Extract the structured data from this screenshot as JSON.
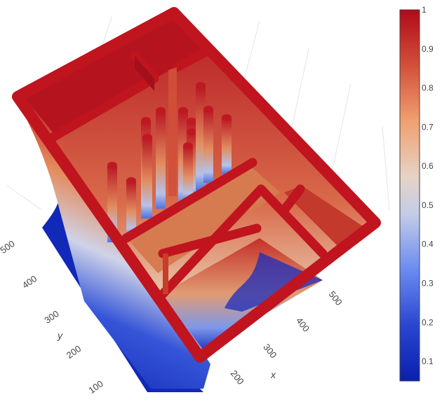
{
  "chart_data": {
    "type": "surface3d",
    "colorscale": "RdBu_r (blue to red)",
    "colorscale_stops": [
      "#0a1fae",
      "#4a6fe0",
      "#dddddd",
      "#e89a68",
      "#b4101c"
    ],
    "colorbar": {
      "range": [
        0.05,
        1
      ],
      "ticks": [
        "0.1",
        "0.2",
        "0.3",
        "0.4",
        "0.5",
        "0.6",
        "0.7",
        "0.8",
        "0.9",
        "1"
      ],
      "tick_values": [
        0.1,
        0.2,
        0.3,
        0.4,
        0.5,
        0.6,
        0.7,
        0.8,
        0.9,
        1.0
      ]
    },
    "x_axis": {
      "title": "x",
      "ticks": [
        "200",
        "300",
        "400",
        "500"
      ]
    },
    "y_axis": {
      "title": "y",
      "ticks": [
        "100",
        "200",
        "300",
        "400",
        "500"
      ]
    },
    "grid": true,
    "legend": "colorbar-right"
  }
}
